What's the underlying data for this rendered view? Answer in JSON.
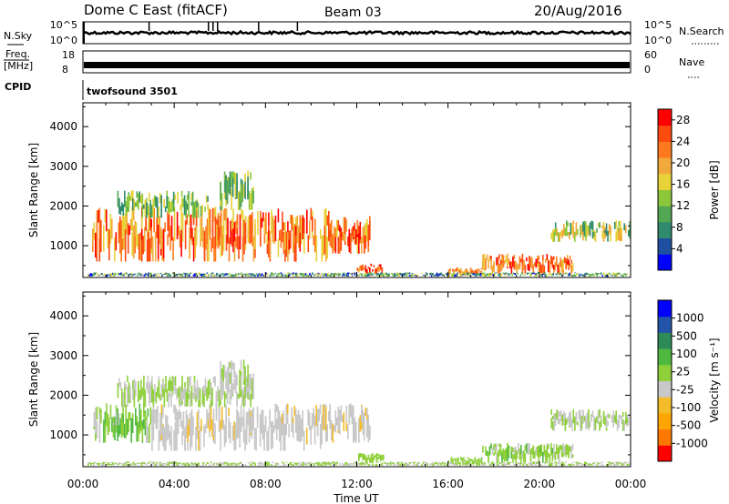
{
  "header": {
    "title": "Dome C East (fitACF)",
    "beam": "Beam 03",
    "date": "20/Aug/2016"
  },
  "status_panels": {
    "nsky": {
      "label": "N.Sky",
      "left_ticks": [
        "10^5",
        "10^0"
      ]
    },
    "nsearch": {
      "label": "N.Search",
      "right_ticks": [
        "10^5",
        "10^0"
      ]
    },
    "freq": {
      "label_line1": "Freq.",
      "label_line2": "[MHz]",
      "left_ticks": [
        "18",
        "8"
      ]
    },
    "nave": {
      "label": "Nave",
      "right_ticks": [
        "60",
        "0"
      ]
    },
    "cpid": {
      "label": "CPID",
      "value": "twofsound 3501"
    }
  },
  "x_axis": {
    "label": "Time UT",
    "ticks": [
      "00:00",
      "04:00",
      "08:00",
      "12:00",
      "16:00",
      "20:00",
      "00:00"
    ]
  },
  "colors": {
    "power": [
      "#0000ff",
      "#1f4fa0",
      "#2f8a6e",
      "#52a852",
      "#8dc83a",
      "#e8d23a",
      "#f2a93b",
      "#ff7a1f",
      "#ff4a10",
      "#ff0000"
    ],
    "velocity": [
      "#ff0000",
      "#ff7800",
      "#ffa500",
      "#f5bc2a",
      "#c8c8c8",
      "#8fd03a",
      "#4fb840",
      "#2e8b57",
      "#2255aa",
      "#0000ff"
    ]
  },
  "chart_data": [
    {
      "type": "heatmap",
      "title": "",
      "xlabel": "Time UT",
      "ylabel": "Slant Range [km]",
      "x_ticks": [
        "00:00",
        "04:00",
        "08:00",
        "12:00",
        "16:00",
        "20:00",
        "00:00"
      ],
      "y_ticks": [
        1000,
        2000,
        3000,
        4000
      ],
      "ylim": [
        200,
        4600
      ],
      "xlim_hours": [
        0,
        24
      ],
      "colorbar": {
        "label": "Power [dB]",
        "ticks": [
          "4",
          "8",
          "12",
          "16",
          "20",
          "24",
          "28"
        ],
        "range": [
          0,
          30
        ]
      },
      "regions": [
        {
          "t0": 0.4,
          "t1": 10.8,
          "r0": 600,
          "r1": 2000,
          "val": 22,
          "spread": 7
        },
        {
          "t0": 1.5,
          "t1": 5.5,
          "r0": 1700,
          "r1": 2400,
          "val": 12,
          "spread": 6
        },
        {
          "t0": 6.0,
          "t1": 7.5,
          "r0": 1900,
          "r1": 2900,
          "val": 12,
          "spread": 6
        },
        {
          "t0": 10.8,
          "t1": 12.6,
          "r0": 800,
          "r1": 1800,
          "val": 23,
          "spread": 6
        },
        {
          "t0": 12.0,
          "t1": 13.2,
          "r0": 300,
          "r1": 550,
          "val": 24,
          "spread": 5
        },
        {
          "t0": 16.0,
          "t1": 17.5,
          "r0": 250,
          "r1": 450,
          "val": 22,
          "spread": 5
        },
        {
          "t0": 17.5,
          "t1": 21.5,
          "r0": 300,
          "r1": 800,
          "val": 24,
          "spread": 7
        },
        {
          "t0": 20.5,
          "t1": 24.0,
          "r0": 1100,
          "r1": 1650,
          "val": 14,
          "spread": 7
        },
        {
          "t0": 0.2,
          "t1": 24.0,
          "r0": 220,
          "r1": 330,
          "val": 10,
          "spread": 8
        }
      ]
    },
    {
      "type": "heatmap",
      "title": "",
      "xlabel": "Time UT",
      "ylabel": "Slant Range [km]",
      "x_ticks": [
        "00:00",
        "04:00",
        "08:00",
        "12:00",
        "16:00",
        "20:00",
        "00:00"
      ],
      "y_ticks": [
        1000,
        2000,
        3000,
        4000
      ],
      "ylim": [
        200,
        4600
      ],
      "xlim_hours": [
        0,
        24
      ],
      "colorbar": {
        "label": "Velocity [m s⁻¹]",
        "ticks": [
          "-1000",
          "-500",
          "-100",
          "-25",
          "25",
          "100",
          "500",
          "1000"
        ],
        "range": [
          -1200,
          1200
        ]
      },
      "regions": [
        {
          "t0": 0.4,
          "t1": 3.0,
          "r0": 800,
          "r1": 1800,
          "val": 150,
          "spread": 250
        },
        {
          "t0": 3.0,
          "t1": 10.8,
          "r0": 600,
          "r1": 1800,
          "val": -150,
          "spread": 120
        },
        {
          "t0": 1.5,
          "t1": 7.5,
          "r0": 1700,
          "r1": 2500,
          "val": 0,
          "spread": 60
        },
        {
          "t0": 6.0,
          "t1": 7.5,
          "r0": 1900,
          "r1": 2900,
          "val": -80,
          "spread": 150
        },
        {
          "t0": 10.8,
          "t1": 12.6,
          "r0": 800,
          "r1": 1800,
          "val": -180,
          "spread": 120
        },
        {
          "t0": 12.0,
          "t1": 13.2,
          "r0": 300,
          "r1": 550,
          "val": 120,
          "spread": 120
        },
        {
          "t0": 16.0,
          "t1": 17.5,
          "r0": 250,
          "r1": 450,
          "val": 100,
          "spread": 150
        },
        {
          "t0": 17.5,
          "t1": 21.5,
          "r0": 300,
          "r1": 800,
          "val": 100,
          "spread": 200
        },
        {
          "t0": 20.5,
          "t1": 24.0,
          "r0": 1100,
          "r1": 1650,
          "val": -20,
          "spread": 150
        },
        {
          "t0": 0.2,
          "t1": 24.0,
          "r0": 220,
          "r1": 330,
          "val": 20,
          "spread": 120
        }
      ]
    }
  ]
}
